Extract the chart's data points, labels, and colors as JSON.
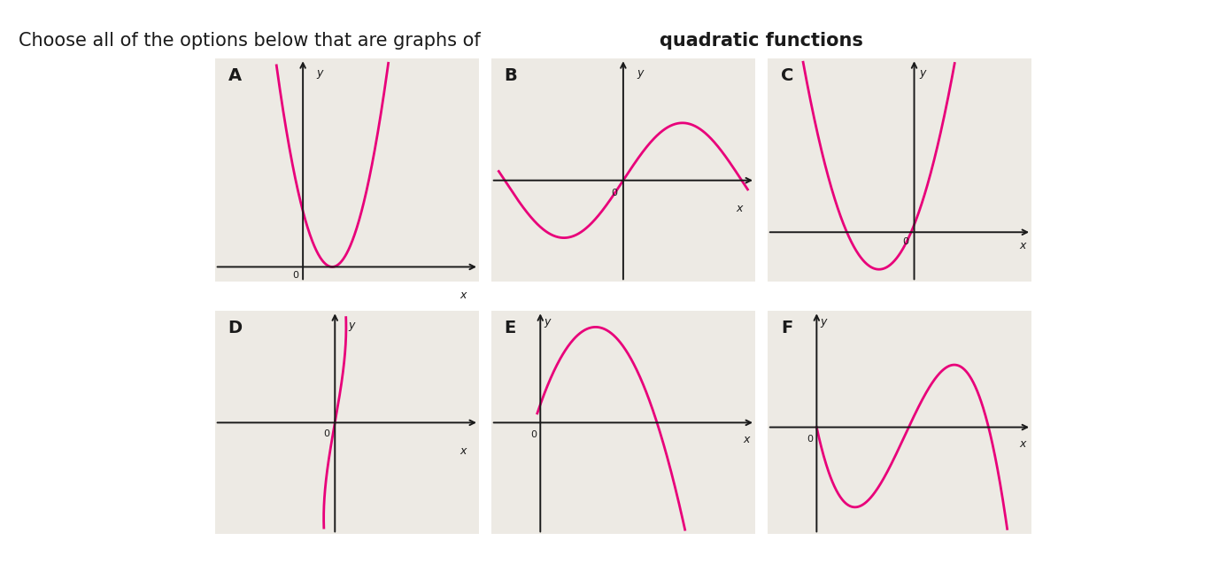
{
  "title_plain": "Choose all of the options below that are graphs of ",
  "title_bold": "quadratic functions",
  "title_suffix": ".",
  "curve_color": "#e8007a",
  "axis_color": "#1a1a1a",
  "panel_bg": "#edeae4",
  "overall_bg": "#ffffff",
  "panels": [
    "A",
    "B",
    "C",
    "D",
    "E",
    "F"
  ],
  "title_fontsize": 15,
  "panel_label_fontsize": 14
}
